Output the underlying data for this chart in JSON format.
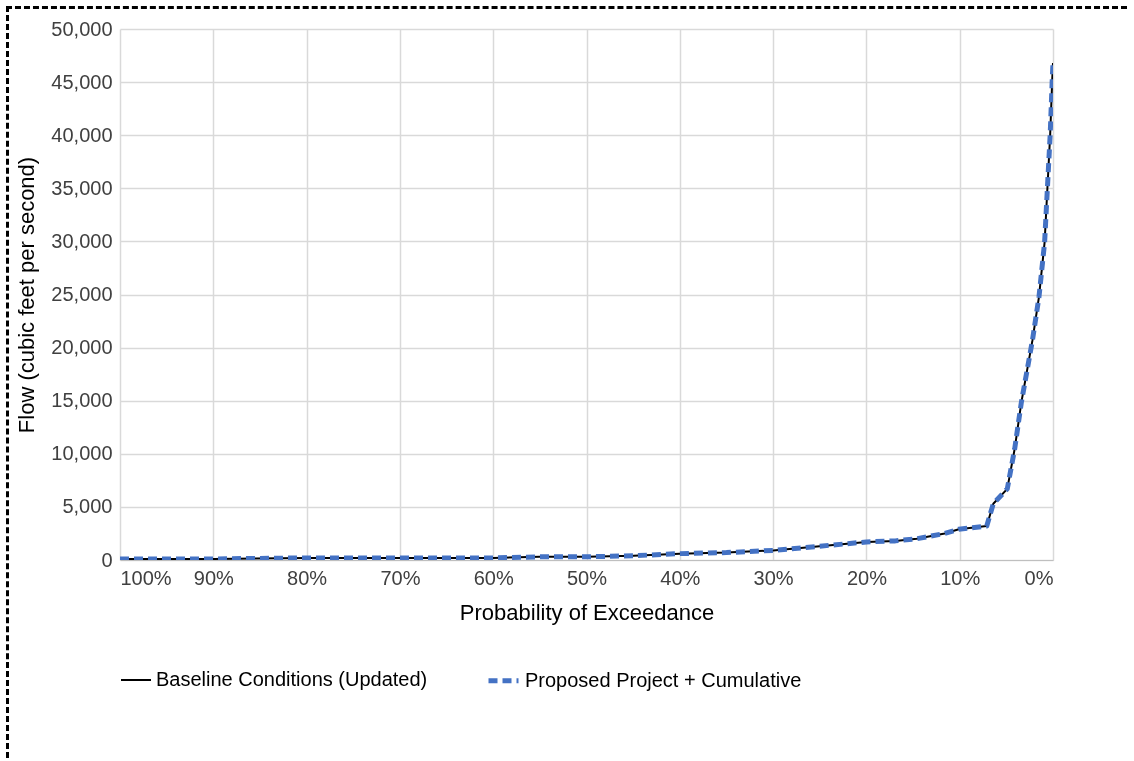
{
  "chart_data": {
    "type": "line",
    "xlabel": "Probability of Exceedance",
    "ylabel": "Flow (cubic feet per second)",
    "x": [
      100,
      90,
      80,
      70,
      60,
      55,
      50,
      45,
      40,
      35,
      30,
      25,
      20,
      16.9,
      14.6,
      11.6,
      10.1,
      7.1,
      6.4,
      4.9,
      4.1,
      3.4,
      2.2,
      1.5,
      0.9,
      0.6,
      0.3,
      0.07,
      0
    ],
    "series": [
      {
        "name": "Baseline Conditions (Updated)",
        "color": "#000000",
        "line_style": "solid",
        "values": [
          100,
          100,
          200,
          200,
          200,
          300,
          300,
          400,
          600,
          700,
          900,
          1300,
          1700,
          1800,
          2000,
          2500,
          2900,
          3200,
          5300,
          6700,
          10500,
          14800,
          20700,
          24800,
          29900,
          35000,
          40100,
          45500,
          46800
        ]
      },
      {
        "name": "Proposed Project + Cumulative",
        "color": "#4472c4",
        "line_style": "dashed",
        "values": [
          100,
          100,
          200,
          200,
          200,
          300,
          300,
          400,
          600,
          700,
          900,
          1300,
          1700,
          1800,
          2000,
          2500,
          2900,
          3200,
          5300,
          6700,
          10500,
          14800,
          20700,
          24800,
          29900,
          35000,
          40100,
          45500,
          46800
        ]
      }
    ],
    "xlim": [
      100,
      0
    ],
    "xticks": [
      {
        "value": 100,
        "label": "100%"
      },
      {
        "value": 90,
        "label": "90%"
      },
      {
        "value": 80,
        "label": "80%"
      },
      {
        "value": 70,
        "label": "70%"
      },
      {
        "value": 60,
        "label": "60%"
      },
      {
        "value": 50,
        "label": "50%"
      },
      {
        "value": 40,
        "label": "40%"
      },
      {
        "value": 30,
        "label": "30%"
      },
      {
        "value": 20,
        "label": "20%"
      },
      {
        "value": 10,
        "label": "10%"
      },
      {
        "value": 0,
        "label": "0%"
      }
    ],
    "ylim": [
      0,
      50000
    ],
    "yticks": [
      0,
      {
        "value": 5000,
        "label": "5,000"
      },
      {
        "value": 10000,
        "label": "10,000"
      },
      {
        "value": 15000,
        "label": "15,000"
      },
      {
        "value": 20000,
        "label": "20,000"
      },
      {
        "value": 25000,
        "label": "25,000"
      },
      {
        "value": 30000,
        "label": "30,000"
      },
      {
        "value": 35000,
        "label": "35,000"
      },
      {
        "value": 40000,
        "label": "40,000"
      },
      {
        "value": 45000,
        "label": "45,000"
      },
      {
        "value": 50000,
        "label": "50,000"
      }
    ],
    "grid": true,
    "legend": "bottom"
  }
}
